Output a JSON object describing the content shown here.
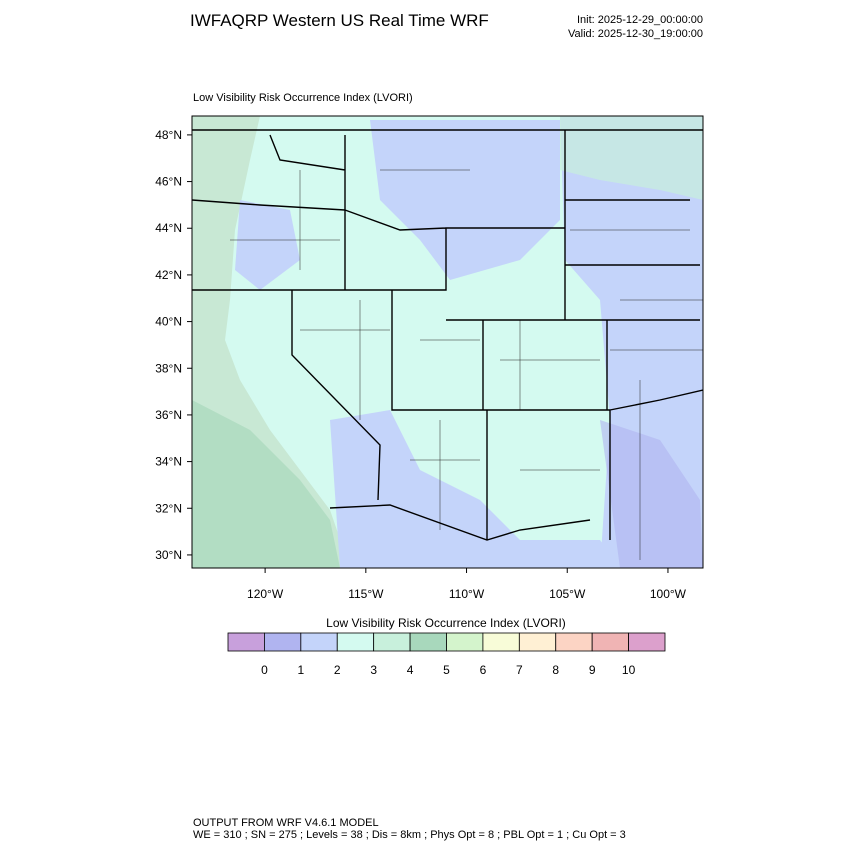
{
  "header": {
    "title": "IWFAQRP Western US Real Time WRF",
    "init": "Init: 2025-12-29_00:00:00",
    "valid": "Valid: 2025-12-30_19:00:00"
  },
  "map": {
    "title": "Low Visibility Risk Occurrence Index   (LVORI)",
    "xlim": [
      -123.63,
      -98.26
    ],
    "ylim": [
      29.44,
      48.81
    ],
    "xticks": [
      {
        "value": -120,
        "label": "120°W"
      },
      {
        "value": -115,
        "label": "115°W"
      },
      {
        "value": -110,
        "label": "110°W"
      },
      {
        "value": -105,
        "label": "105°W"
      },
      {
        "value": -100,
        "label": "100°W"
      }
    ],
    "yticks": [
      {
        "value": 30,
        "label": "30°N"
      },
      {
        "value": 32,
        "label": "32°N"
      },
      {
        "value": 34,
        "label": "34°N"
      },
      {
        "value": 36,
        "label": "36°N"
      },
      {
        "value": 38,
        "label": "38°N"
      },
      {
        "value": 40,
        "label": "40°N"
      },
      {
        "value": 42,
        "label": "42°N"
      },
      {
        "value": 44,
        "label": "44°N"
      },
      {
        "value": 46,
        "label": "46°N"
      },
      {
        "value": 48,
        "label": "48°N"
      }
    ]
  },
  "colorbar": {
    "title": "Low Visibility Risk Occurrence Index  (LVORI)",
    "levels": [
      0,
      1,
      2,
      3,
      4,
      5,
      6,
      7,
      8,
      9,
      10
    ],
    "colors": [
      "#c8a0dc",
      "#b0b4f0",
      "#c4d4fa",
      "#d4faf0",
      "#c8f0dc",
      "#a8d8bc",
      "#d4f4cc",
      "#f8fcd8",
      "#fff0d4",
      "#fcd4c4",
      "#f0b4b4",
      "#dca0cc"
    ]
  },
  "footer": {
    "line1": "OUTPUT FROM WRF V4.6.1 MODEL",
    "line2": "WE = 310 ; SN = 275 ; Levels = 38 ; Dis = 8km ; Phys Opt = 8 ; PBL Opt = 1 ; Cu Opt = 3"
  }
}
